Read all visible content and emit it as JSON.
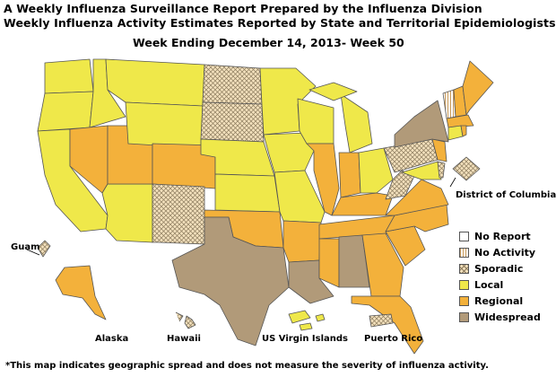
{
  "header": {
    "line1": "A Weekly Influenza Surveillance Report Prepared by the Influenza Division",
    "line2": "Weekly Influenza Activity Estimates Reported by State and Territorial Epidemiologists*",
    "week": "Week Ending December 14, 2013- Week 50"
  },
  "legend": {
    "items": [
      {
        "label": "No Report",
        "color": "#ffffff",
        "pattern": "none"
      },
      {
        "label": "No Activity",
        "color": "#ffffff",
        "pattern": "vertical-stripes"
      },
      {
        "label": "Sporadic",
        "color": "#f3e1bd",
        "pattern": "crosshatch"
      },
      {
        "label": "Local",
        "color": "#efe84a",
        "pattern": "none"
      },
      {
        "label": "Regional",
        "color": "#f3b13b",
        "pattern": "none"
      },
      {
        "label": "Widespread",
        "color": "#b19a79",
        "pattern": "none"
      }
    ]
  },
  "labels": {
    "dc": "District of Columbia",
    "guam": "Guam",
    "alaska": "Alaska",
    "hawaii": "Hawaii",
    "usvi": "US Virgin Islands",
    "pr": "Puerto Rico"
  },
  "footnote": "*This map indicates geographic spread and does not measure the severity of influenza activity.",
  "activity": {
    "No Activity": [
      "Vermont"
    ],
    "Sporadic": [
      "North Dakota",
      "South Dakota",
      "New Mexico",
      "Pennsylvania",
      "West Virginia",
      "Delaware",
      "District of Columbia",
      "Guam",
      "Hawaii",
      "Puerto Rico"
    ],
    "Local": [
      "Washington",
      "Oregon",
      "California",
      "Idaho",
      "Montana",
      "Wyoming",
      "Arizona",
      "Nebraska",
      "Kansas",
      "Minnesota",
      "Iowa",
      "Missouri",
      "Wisconsin",
      "Michigan",
      "Ohio",
      "Maryland",
      "Connecticut",
      "US Virgin Islands"
    ],
    "Regional": [
      "Nevada",
      "Utah",
      "Colorado",
      "Oklahoma",
      "Arkansas",
      "Illinois",
      "Indiana",
      "Kentucky",
      "Tennessee",
      "Mississippi",
      "Georgia",
      "Florida",
      "South Carolina",
      "North Carolina",
      "Virginia",
      "New Jersey",
      "Massachusetts",
      "New Hampshire",
      "Maine",
      "Rhode Island",
      "Alaska"
    ],
    "Widespread": [
      "Texas",
      "Louisiana",
      "Alabama",
      "New York"
    ]
  }
}
